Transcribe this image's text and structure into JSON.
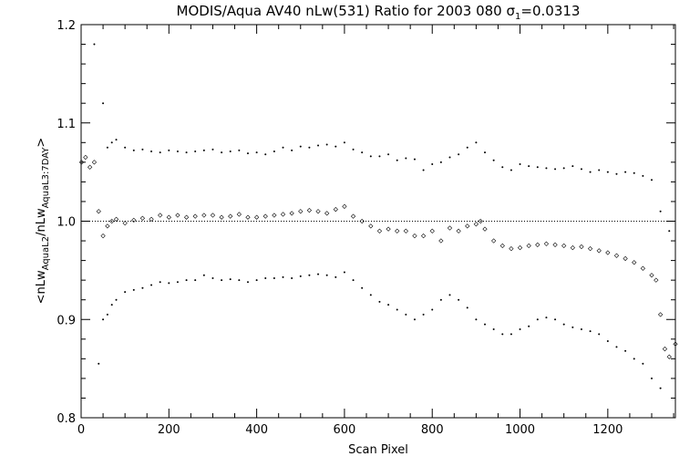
{
  "chart_data": {
    "type": "scatter",
    "title_main": "MODIS/Aqua AV40 nLw(531) Ratio for 2003 080 ",
    "title_sigma_symbol": "σ",
    "title_sigma_sub": "1",
    "title_sigma_value": "=0.0313",
    "xlabel": "Scan Pixel",
    "ylabel_parts": [
      {
        "text": "<nLw",
        "sub": false
      },
      {
        "text": "AquaL2",
        "sub": true
      },
      {
        "text": "/nLw",
        "sub": false
      },
      {
        "text": "AquaL3:7DAY",
        "sub": true
      },
      {
        "text": ">",
        "sub": false
      }
    ],
    "xlim": [
      0,
      1354
    ],
    "ylim": [
      0.8,
      1.2
    ],
    "x_ticks": [
      0,
      200,
      400,
      600,
      800,
      1000,
      1200
    ],
    "x_tick_labels": [
      "0",
      "200",
      "400",
      "600",
      "800",
      "1000",
      "1200"
    ],
    "y_ticks": [
      0.8,
      0.9,
      1.0,
      1.1,
      1.2
    ],
    "y_tick_labels": [
      "0.8",
      "0.9",
      "1.0",
      "1.1",
      "1.2"
    ],
    "x_minor_step": 50,
    "y_minor_step": 0.02,
    "reference_line_y": 1.0,
    "mean_profile": {
      "marker": "diamond",
      "x": [
        1,
        10,
        20,
        30,
        40,
        50,
        60,
        70,
        80,
        100,
        120,
        140,
        160,
        180,
        200,
        220,
        240,
        260,
        280,
        300,
        320,
        340,
        360,
        380,
        400,
        420,
        440,
        460,
        480,
        500,
        520,
        540,
        560,
        580,
        600,
        620,
        640,
        660,
        680,
        700,
        720,
        740,
        760,
        780,
        800,
        820,
        840,
        860,
        880,
        900,
        910,
        920,
        940,
        960,
        980,
        1000,
        1020,
        1040,
        1060,
        1080,
        1100,
        1120,
        1140,
        1160,
        1180,
        1200,
        1220,
        1240,
        1260,
        1280,
        1300,
        1310,
        1320,
        1330,
        1340,
        1354
      ],
      "y": [
        1.06,
        1.065,
        1.055,
        1.06,
        1.01,
        0.985,
        0.995,
        1.0,
        1.002,
        0.998,
        1.001,
        1.003,
        1.002,
        1.006,
        1.004,
        1.006,
        1.004,
        1.005,
        1.006,
        1.006,
        1.004,
        1.005,
        1.007,
        1.004,
        1.004,
        1.005,
        1.006,
        1.007,
        1.008,
        1.01,
        1.011,
        1.01,
        1.008,
        1.012,
        1.015,
        1.005,
        1.0,
        0.995,
        0.99,
        0.992,
        0.99,
        0.99,
        0.985,
        0.985,
        0.99,
        0.98,
        0.993,
        0.99,
        0.995,
        0.997,
        1.0,
        0.992,
        0.98,
        0.975,
        0.972,
        0.973,
        0.975,
        0.976,
        0.977,
        0.976,
        0.975,
        0.973,
        0.974,
        0.972,
        0.97,
        0.968,
        0.965,
        0.962,
        0.958,
        0.952,
        0.945,
        0.94,
        0.905,
        0.87,
        0.862,
        0.875
      ]
    },
    "upper_band": {
      "marker": "dot",
      "x": [
        30,
        50,
        60,
        70,
        80,
        100,
        120,
        140,
        160,
        180,
        200,
        220,
        240,
        260,
        280,
        300,
        320,
        340,
        360,
        380,
        400,
        420,
        440,
        460,
        480,
        500,
        520,
        540,
        560,
        580,
        600,
        620,
        640,
        660,
        680,
        700,
        720,
        740,
        760,
        780,
        800,
        820,
        840,
        860,
        880,
        900,
        920,
        940,
        960,
        980,
        1000,
        1020,
        1040,
        1060,
        1080,
        1100,
        1120,
        1140,
        1160,
        1180,
        1200,
        1220,
        1240,
        1260,
        1280,
        1300,
        1320,
        1340
      ],
      "y": [
        1.18,
        1.12,
        1.075,
        1.08,
        1.083,
        1.075,
        1.072,
        1.073,
        1.071,
        1.07,
        1.072,
        1.071,
        1.07,
        1.071,
        1.072,
        1.073,
        1.07,
        1.071,
        1.072,
        1.069,
        1.07,
        1.068,
        1.071,
        1.075,
        1.072,
        1.076,
        1.075,
        1.077,
        1.078,
        1.076,
        1.08,
        1.073,
        1.07,
        1.066,
        1.066,
        1.068,
        1.062,
        1.064,
        1.063,
        1.052,
        1.058,
        1.06,
        1.065,
        1.068,
        1.075,
        1.08,
        1.07,
        1.062,
        1.055,
        1.052,
        1.058,
        1.056,
        1.055,
        1.054,
        1.053,
        1.054,
        1.056,
        1.053,
        1.05,
        1.052,
        1.05,
        1.048,
        1.05,
        1.049,
        1.046,
        1.042,
        1.01,
        0.99
      ]
    },
    "lower_band": {
      "marker": "dot",
      "x": [
        40,
        50,
        60,
        70,
        80,
        100,
        120,
        140,
        160,
        180,
        200,
        220,
        240,
        260,
        280,
        300,
        320,
        340,
        360,
        380,
        400,
        420,
        440,
        460,
        480,
        500,
        520,
        540,
        560,
        580,
        600,
        620,
        640,
        660,
        680,
        700,
        720,
        740,
        760,
        780,
        800,
        820,
        840,
        860,
        880,
        900,
        920,
        940,
        960,
        980,
        1000,
        1020,
        1040,
        1060,
        1080,
        1100,
        1120,
        1140,
        1160,
        1180,
        1200,
        1220,
        1240,
        1260,
        1280,
        1300,
        1320
      ],
      "y": [
        0.855,
        0.9,
        0.905,
        0.915,
        0.92,
        0.928,
        0.93,
        0.932,
        0.935,
        0.938,
        0.937,
        0.938,
        0.94,
        0.94,
        0.945,
        0.942,
        0.94,
        0.941,
        0.94,
        0.938,
        0.94,
        0.942,
        0.942,
        0.943,
        0.942,
        0.944,
        0.945,
        0.946,
        0.945,
        0.943,
        0.948,
        0.94,
        0.932,
        0.925,
        0.918,
        0.915,
        0.91,
        0.905,
        0.9,
        0.905,
        0.91,
        0.92,
        0.925,
        0.92,
        0.912,
        0.9,
        0.895,
        0.89,
        0.885,
        0.885,
        0.89,
        0.893,
        0.9,
        0.902,
        0.9,
        0.895,
        0.892,
        0.89,
        0.888,
        0.885,
        0.878,
        0.872,
        0.868,
        0.86,
        0.855,
        0.84,
        0.83
      ]
    }
  }
}
